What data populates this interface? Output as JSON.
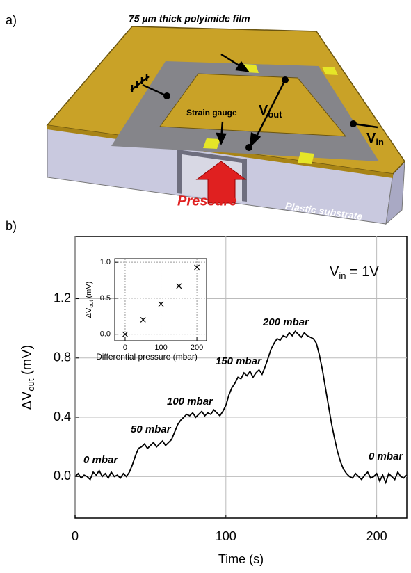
{
  "diagram": {
    "panel_a": "a)",
    "panel_b": "b)",
    "film_label": "75 µm thick polyimide film",
    "strain_gauge": "Strain gauge",
    "vout": {
      "main": "V",
      "sub": "out"
    },
    "vin": {
      "main": "V",
      "sub": "in"
    },
    "pressure": "Pressure",
    "substrate": "Plastic substrate"
  },
  "chart_data": [
    {
      "type": "line",
      "color": "#000000",
      "x": [
        0,
        2,
        4,
        6,
        8,
        10,
        12,
        14,
        16,
        18,
        20,
        22,
        24,
        26,
        28,
        30,
        32,
        34,
        36,
        38,
        40,
        42,
        44,
        46,
        48,
        50,
        52,
        54,
        56,
        58,
        60,
        62,
        64,
        66,
        68,
        70,
        72,
        74,
        76,
        78,
        80,
        82,
        84,
        86,
        88,
        90,
        92,
        94,
        96,
        98,
        100,
        102,
        104,
        106,
        108,
        110,
        112,
        114,
        116,
        118,
        120,
        122,
        124,
        126,
        128,
        130,
        132,
        134,
        136,
        138,
        140,
        142,
        144,
        146,
        148,
        150,
        152,
        154,
        156,
        158,
        160,
        162,
        164,
        166,
        168,
        170,
        172,
        174,
        176,
        178,
        180,
        182,
        184,
        186,
        188,
        190,
        192,
        194,
        196,
        198,
        200,
        202,
        204,
        206,
        208,
        210,
        212,
        214,
        216,
        218,
        220
      ],
      "values": [
        0.0,
        0.02,
        -0.01,
        0.01,
        0.0,
        -0.02,
        0.03,
        0.01,
        0.04,
        0.0,
        0.02,
        -0.01,
        0.03,
        0.0,
        0.01,
        -0.01,
        0.02,
        0.0,
        0.03,
        0.08,
        0.14,
        0.19,
        0.2,
        0.22,
        0.19,
        0.21,
        0.23,
        0.2,
        0.22,
        0.24,
        0.21,
        0.23,
        0.25,
        0.3,
        0.35,
        0.38,
        0.4,
        0.42,
        0.41,
        0.43,
        0.4,
        0.42,
        0.44,
        0.41,
        0.43,
        0.42,
        0.45,
        0.43,
        0.41,
        0.44,
        0.48,
        0.55,
        0.6,
        0.63,
        0.67,
        0.66,
        0.7,
        0.68,
        0.71,
        0.67,
        0.7,
        0.72,
        0.69,
        0.74,
        0.8,
        0.86,
        0.9,
        0.93,
        0.92,
        0.95,
        0.94,
        0.97,
        0.95,
        0.98,
        0.96,
        0.94,
        0.97,
        0.95,
        0.94,
        0.93,
        0.9,
        0.82,
        0.72,
        0.6,
        0.48,
        0.36,
        0.26,
        0.17,
        0.1,
        0.05,
        0.02,
        0.0,
        -0.01,
        0.02,
        0.0,
        -0.02,
        0.01,
        0.03,
        -0.01,
        0.0,
        0.02,
        -0.03,
        0.01,
        -0.04,
        0.02,
        0.0,
        -0.02,
        0.03,
        0.0,
        -0.01,
        0.01
      ],
      "xlim": [
        0,
        220
      ],
      "xticks": [
        0,
        100,
        200
      ],
      "ylim": [
        -0.28,
        1.62
      ],
      "yticks": [
        {
          "value": 0,
          "label": "0.0"
        },
        0.4,
        0.8,
        1.2
      ],
      "grid": true,
      "x_label": "Time (s)",
      "y_label": {
        "main": "ΔV",
        "sub": "out",
        "unit": " (mV)"
      },
      "annotations": [
        "0 mbar",
        "50 mbar",
        "100 mbar",
        "150 mbar",
        "200 mbar",
        "0 mbar"
      ],
      "vin_note": {
        "main": "V",
        "sub": "in",
        "rest": " = 1V"
      }
    },
    {
      "type": "scatter",
      "color": "#000000",
      "x": [
        0,
        50,
        100,
        150,
        200
      ],
      "values": [
        0.0,
        0.2,
        0.42,
        0.67,
        0.93
      ],
      "xlim": [
        -29,
        227
      ],
      "xticks": [
        0,
        100,
        200
      ],
      "ylim": [
        -0.09,
        1.05
      ],
      "yticks": [
        {
          "value": 0,
          "label": "0.0"
        },
        0.5,
        {
          "value": 1,
          "label": "1.0"
        }
      ],
      "grid": true,
      "x_label": "Differential pressure (mbar)",
      "y_label": {
        "main": "ΔV",
        "sub": "out",
        "unit": " (mV)"
      }
    }
  ]
}
